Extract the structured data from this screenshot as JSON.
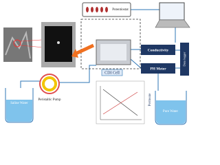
{
  "labels": {
    "potentiostat": "Potentiostat",
    "conductivity": "Conductivity",
    "ph_meter": "PH Meter",
    "data_logger": "Data logger",
    "cdi_cell": "CDI Cell",
    "permeate": "Permeate",
    "saline_water": "Saline Water",
    "peristaltic_pump": "Peristaltic Pump",
    "pure_water": "Pure Water"
  }
}
